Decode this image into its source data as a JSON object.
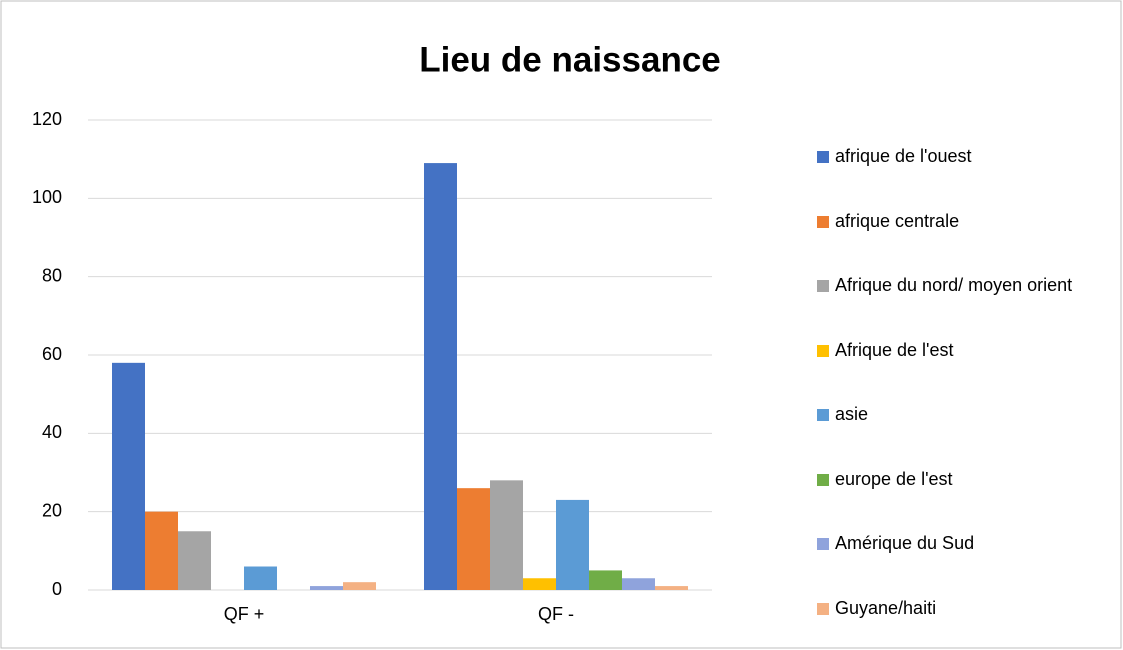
{
  "chart_data": {
    "type": "bar",
    "title": "Lieu de naissance",
    "categories": [
      "QF +",
      "QF -"
    ],
    "series": [
      {
        "name": "afrique de l'ouest",
        "color": "#4472c4",
        "values": [
          58,
          109
        ]
      },
      {
        "name": "afrique centrale",
        "color": "#ed7d31",
        "values": [
          20,
          26
        ]
      },
      {
        "name": "Afrique du nord/ moyen orient",
        "color": "#a5a5a5",
        "values": [
          15,
          28
        ]
      },
      {
        "name": "Afrique de l'est",
        "color": "#ffc000",
        "values": [
          0,
          3
        ]
      },
      {
        "name": "asie",
        "color": "#5b9bd5",
        "values": [
          6,
          23
        ]
      },
      {
        "name": "europe de l'est",
        "color": "#70ad47",
        "values": [
          0,
          5
        ]
      },
      {
        "name": "Amérique du Sud",
        "color": "#8fa3dc",
        "values": [
          1,
          3
        ]
      },
      {
        "name": "Guyane/haiti",
        "color": "#f4b183",
        "values": [
          2,
          1
        ]
      }
    ],
    "ylim": [
      0,
      120
    ],
    "yticks": [
      0,
      20,
      40,
      60,
      80,
      100,
      120
    ],
    "grid": true,
    "legend": "right"
  }
}
